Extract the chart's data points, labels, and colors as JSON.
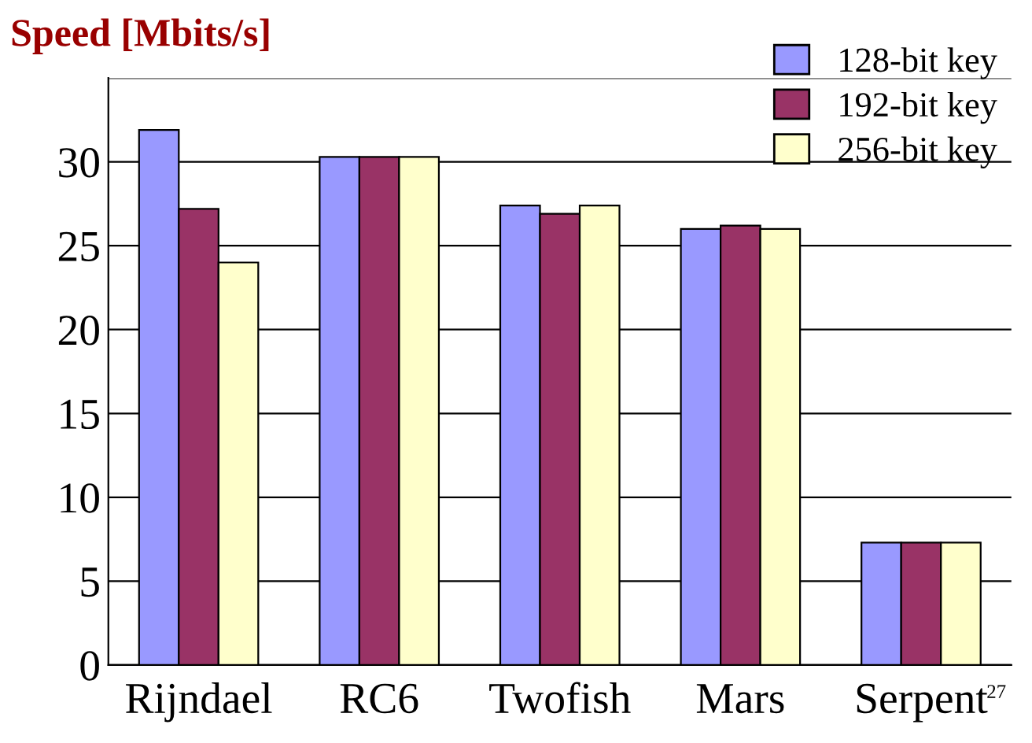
{
  "chart_data": {
    "type": "bar",
    "title": "Speed [Mbits/s]",
    "categories": [
      "Rijndael",
      "RC6",
      "Twofish",
      "Mars",
      "Serpent"
    ],
    "series": [
      {
        "name": "128-bit key",
        "color": "#9999ff",
        "values": [
          31.9,
          30.3,
          27.4,
          26.0,
          7.3
        ]
      },
      {
        "name": "192-bit key",
        "color": "#993366",
        "values": [
          27.2,
          30.3,
          26.9,
          26.2,
          7.3
        ]
      },
      {
        "name": "256-bit key",
        "color": "#ffffcc",
        "values": [
          24.0,
          30.3,
          27.4,
          26.0,
          7.3
        ]
      }
    ],
    "ylim": [
      0,
      35
    ],
    "yticks": [
      0,
      5,
      10,
      15,
      20,
      25,
      30
    ],
    "grid": "y",
    "legend": "top right",
    "annotations": [
      "27"
    ]
  }
}
